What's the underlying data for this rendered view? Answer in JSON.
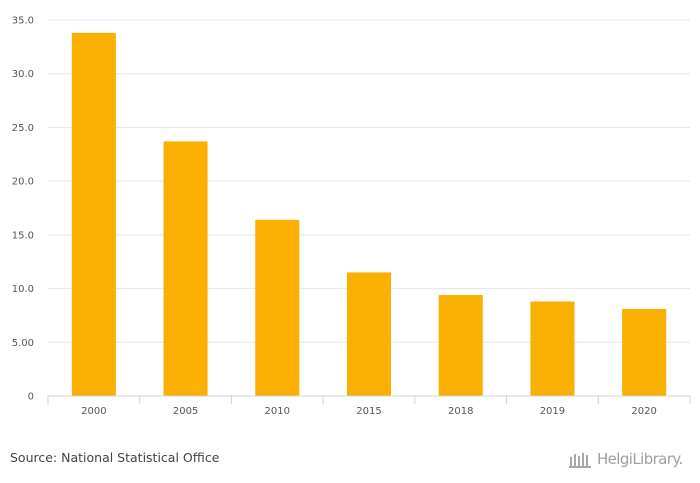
{
  "chart_data": {
    "type": "bar",
    "categories": [
      "2000",
      "2005",
      "2010",
      "2015",
      "2018",
      "2019",
      "2020"
    ],
    "values": [
      33.8,
      23.7,
      16.4,
      11.5,
      9.4,
      8.8,
      8.1
    ],
    "ylim": [
      0,
      35
    ],
    "yticks": [
      {
        "value": 0,
        "label": "0"
      },
      {
        "value": 5,
        "label": "5.00"
      },
      {
        "value": 10,
        "label": "10.0"
      },
      {
        "value": 15,
        "label": "15.0"
      },
      {
        "value": 20,
        "label": "20.0"
      },
      {
        "value": 25,
        "label": "25.0"
      },
      {
        "value": 30,
        "label": "30.0"
      },
      {
        "value": 35,
        "label": "35.0"
      }
    ],
    "grid": true,
    "bar_color": "#F9B000",
    "title": "",
    "xlabel": "",
    "ylabel": ""
  },
  "footer": {
    "source": "Source: National Statistical Office",
    "logo_text": "HelgiLibrary."
  }
}
